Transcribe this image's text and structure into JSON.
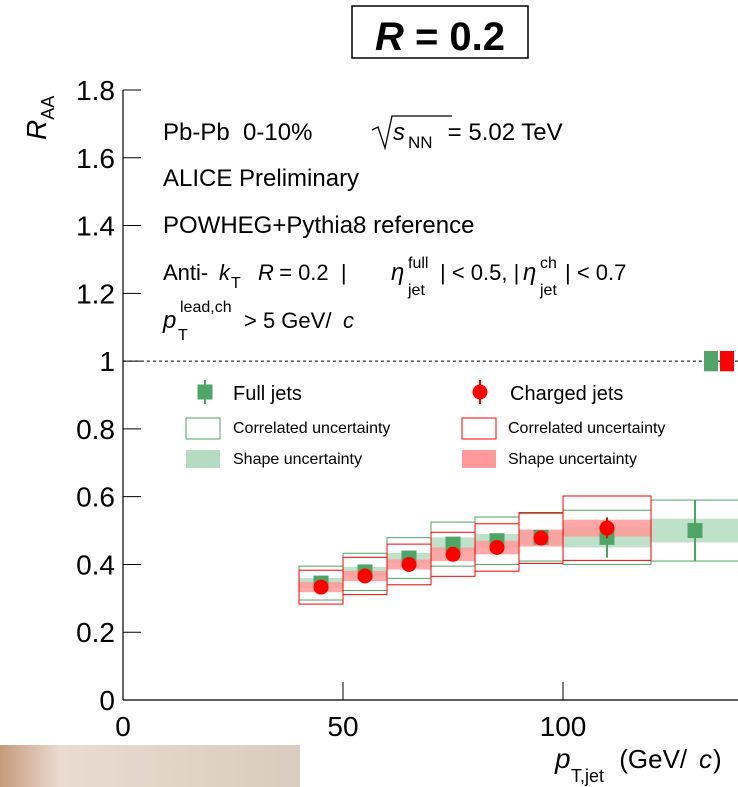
{
  "chart_data": {
    "type": "binned_points",
    "title": [
      "R",
      " = 0.2"
    ],
    "y_label": [
      "R",
      "AA"
    ],
    "x_label": [
      "p",
      "T,jet",
      " (GeV/",
      "c",
      ")"
    ],
    "annotations": [
      [
        "Pb-Pb  0-10%",
        "s",
        "NN",
        " = 5.02 TeV"
      ],
      [
        "ALICE Preliminary"
      ],
      [
        "POWHEG+Pythia8 reference"
      ],
      [
        "Anti-",
        "k",
        "T",
        "R",
        " = 0.2  |",
        "η",
        "full",
        "jet",
        "| < 0.5, |",
        "η",
        "ch",
        "jet",
        "| < 0.7"
      ],
      [
        "p",
        "lead,ch",
        "T",
        "> 5 GeV/",
        "c"
      ]
    ],
    "xlim": [
      0,
      140
    ],
    "ylim": [
      0,
      1.8
    ],
    "xticks": [
      0,
      50,
      100
    ],
    "yticks": [
      0,
      0.2,
      0.4,
      0.6,
      0.8,
      1,
      1.2,
      1.4,
      1.6,
      1.8
    ],
    "reference_line": 1,
    "uncertainty_labels": [
      "Correlated uncertainty",
      "Shape uncertainty"
    ],
    "series": [
      {
        "name": "Full jets",
        "marker": "square",
        "color": "#4fa565",
        "shape_color": "#b5dcc0",
        "bin_edges": [
          40,
          50,
          60,
          70,
          80,
          90,
          100,
          120,
          140
        ],
        "x": [
          45,
          55,
          65,
          75,
          85,
          95,
          110,
          130
        ],
        "values": [
          0.345,
          0.378,
          0.419,
          0.46,
          0.47,
          0.48,
          0.48,
          0.5
        ],
        "stat_errors": [
          0.01,
          0.01,
          0.015,
          0.02,
          0.02,
          0.02,
          0.06,
          0.09
        ],
        "correlated_uncertainty": [
          0.05,
          0.055,
          0.06,
          0.065,
          0.07,
          0.07,
          0.08,
          0.09
        ],
        "shape_uncertainty": [
          0.015,
          0.015,
          0.015,
          0.02,
          0.02,
          0.02,
          0.03,
          0.035
        ],
        "norm_uncertainty": 0.03
      },
      {
        "name": "Charged jets",
        "marker": "circle",
        "color": "#ff0000",
        "shape_color": "#ff9999",
        "bin_edges": [
          40,
          50,
          60,
          70,
          80,
          90,
          100,
          120
        ],
        "x": [
          45,
          55,
          65,
          75,
          85,
          95,
          110
        ],
        "values": [
          0.333,
          0.366,
          0.4,
          0.43,
          0.45,
          0.478,
          0.507
        ],
        "stat_errors": [
          0.01,
          0.01,
          0.01,
          0.01,
          0.01,
          0.01,
          0.03
        ],
        "correlated_uncertainty": [
          0.05,
          0.055,
          0.06,
          0.065,
          0.07,
          0.075,
          0.095
        ],
        "shape_uncertainty": [
          0.015,
          0.015,
          0.015,
          0.02,
          0.02,
          0.025,
          0.025
        ],
        "norm_uncertainty": 0.03
      }
    ]
  }
}
